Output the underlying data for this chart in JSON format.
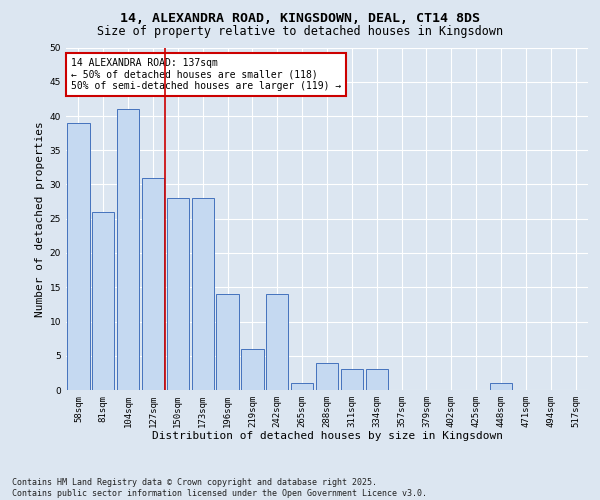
{
  "title_line1": "14, ALEXANDRA ROAD, KINGSDOWN, DEAL, CT14 8DS",
  "title_line2": "Size of property relative to detached houses in Kingsdown",
  "xlabel": "Distribution of detached houses by size in Kingsdown",
  "ylabel": "Number of detached properties",
  "categories": [
    "58sqm",
    "81sqm",
    "104sqm",
    "127sqm",
    "150sqm",
    "173sqm",
    "196sqm",
    "219sqm",
    "242sqm",
    "265sqm",
    "288sqm",
    "311sqm",
    "334sqm",
    "357sqm",
    "379sqm",
    "402sqm",
    "425sqm",
    "448sqm",
    "471sqm",
    "494sqm",
    "517sqm"
  ],
  "values": [
    39,
    26,
    41,
    31,
    28,
    28,
    14,
    6,
    14,
    1,
    4,
    3,
    3,
    0,
    0,
    0,
    0,
    1,
    0,
    0,
    0
  ],
  "bar_color": "#c5d9f1",
  "bar_edge_color": "#4472bd",
  "vline_color": "#cc0000",
  "vline_x_index": 3.5,
  "annotation_text": "14 ALEXANDRA ROAD: 137sqm\n← 50% of detached houses are smaller (118)\n50% of semi-detached houses are larger (119) →",
  "annotation_box_edge_color": "#cc0000",
  "ylim": [
    0,
    50
  ],
  "yticks": [
    0,
    5,
    10,
    15,
    20,
    25,
    30,
    35,
    40,
    45,
    50
  ],
  "footnote": "Contains HM Land Registry data © Crown copyright and database right 2025.\nContains public sector information licensed under the Open Government Licence v3.0.",
  "background_color": "#dce6f1",
  "plot_bg_color": "#dce6f1",
  "grid_color": "#ffffff",
  "title_fontsize": 9.5,
  "subtitle_fontsize": 8.5,
  "tick_fontsize": 6.5,
  "xlabel_fontsize": 8,
  "ylabel_fontsize": 8,
  "annotation_fontsize": 7,
  "footnote_fontsize": 6
}
